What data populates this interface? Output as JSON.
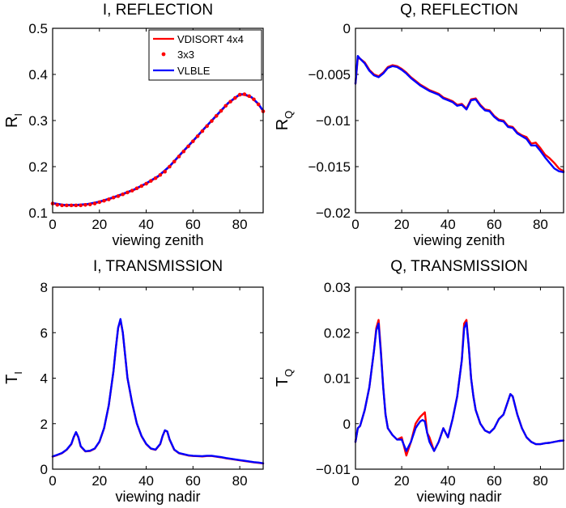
{
  "chart_data": [
    {
      "type": "line",
      "title": "I, REFLECTION",
      "xlabel": "viewing zenith",
      "ylabel_main": "R",
      "ylabel_sub": "I",
      "xlim": [
        0,
        90
      ],
      "ylim": [
        0.1,
        0.5
      ],
      "xticks": [
        "0",
        "20",
        "40",
        "60",
        "80"
      ],
      "yticks": [
        "0.1",
        "0.2",
        "0.3",
        "0.4",
        "0.5"
      ],
      "legend": {
        "position": "top-right",
        "entries": [
          "VDISORT 4x4",
          "3x3",
          "VLBLE"
        ]
      },
      "series": [
        {
          "name": "VDISORT 4x4",
          "style": "line",
          "color": "#ff0000",
          "x": [
            0,
            5,
            10,
            15,
            20,
            25,
            30,
            35,
            40,
            45,
            50,
            55,
            60,
            65,
            70,
            75,
            80,
            82,
            85,
            88,
            90
          ],
          "y": [
            0.12,
            0.116,
            0.116,
            0.118,
            0.123,
            0.131,
            0.14,
            0.15,
            0.163,
            0.178,
            0.2,
            0.228,
            0.255,
            0.283,
            0.31,
            0.337,
            0.356,
            0.356,
            0.35,
            0.335,
            0.32
          ]
        },
        {
          "name": "3x3",
          "style": "dots",
          "color": "#ff0000",
          "x": [
            0,
            2,
            4,
            6,
            8,
            10,
            12,
            14,
            16,
            18,
            20,
            22,
            24,
            26,
            28,
            30,
            32,
            34,
            36,
            38,
            40,
            42,
            44,
            46,
            48,
            50,
            52,
            54,
            56,
            58,
            60,
            62,
            64,
            66,
            68,
            70,
            72,
            74,
            76,
            78,
            80,
            82,
            84,
            86,
            88,
            90
          ],
          "y": [
            0.12,
            0.117,
            0.116,
            0.116,
            0.116,
            0.116,
            0.116,
            0.117,
            0.118,
            0.12,
            0.123,
            0.126,
            0.129,
            0.133,
            0.136,
            0.14,
            0.144,
            0.148,
            0.153,
            0.158,
            0.163,
            0.169,
            0.175,
            0.182,
            0.189,
            0.2,
            0.211,
            0.222,
            0.233,
            0.244,
            0.255,
            0.266,
            0.277,
            0.288,
            0.299,
            0.31,
            0.321,
            0.332,
            0.341,
            0.349,
            0.356,
            0.357,
            0.353,
            0.346,
            0.335,
            0.32
          ]
        },
        {
          "name": "VLBLE",
          "style": "line",
          "color": "#0000ff",
          "x": [
            0,
            5,
            10,
            15,
            20,
            25,
            30,
            35,
            40,
            45,
            50,
            55,
            60,
            65,
            70,
            75,
            80,
            82,
            85,
            88,
            90
          ],
          "y": [
            0.121,
            0.117,
            0.117,
            0.119,
            0.124,
            0.132,
            0.141,
            0.151,
            0.164,
            0.179,
            0.201,
            0.229,
            0.256,
            0.284,
            0.311,
            0.338,
            0.357,
            0.357,
            0.351,
            0.336,
            0.321
          ]
        }
      ]
    },
    {
      "type": "line",
      "title": "Q, REFLECTION",
      "xlabel": "viewing zenith",
      "ylabel_main": "R",
      "ylabel_sub": "Q",
      "xlim": [
        0,
        90
      ],
      "ylim": [
        -0.02,
        0
      ],
      "xticks": [
        "0",
        "20",
        "40",
        "60",
        "80"
      ],
      "yticks": [
        "−0.02",
        "−0.015",
        "−0.01",
        "−0.005",
        "0"
      ],
      "series": [
        {
          "name": "VDISORT 4x4",
          "style": "line",
          "color": "#ff0000",
          "x": [
            0,
            1,
            2,
            4,
            6,
            8,
            10,
            12,
            14,
            16,
            18,
            20,
            22,
            24,
            26,
            28,
            30,
            32,
            34,
            36,
            38,
            40,
            42,
            44,
            46,
            48,
            50,
            52,
            54,
            56,
            58,
            60,
            62,
            64,
            66,
            68,
            70,
            72,
            74,
            76,
            78,
            80,
            82,
            84,
            86,
            88,
            90
          ],
          "y": [
            -0.006,
            -0.0032,
            -0.0033,
            -0.0037,
            -0.0045,
            -0.005,
            -0.0052,
            -0.0048,
            -0.0042,
            -0.004,
            -0.0041,
            -0.0044,
            -0.0048,
            -0.0053,
            -0.0057,
            -0.0061,
            -0.0064,
            -0.0067,
            -0.0069,
            -0.0071,
            -0.0075,
            -0.0077,
            -0.0079,
            -0.0083,
            -0.0082,
            -0.0087,
            -0.0077,
            -0.0076,
            -0.0083,
            -0.0088,
            -0.0089,
            -0.0095,
            -0.0099,
            -0.01,
            -0.0106,
            -0.0107,
            -0.0113,
            -0.0116,
            -0.0118,
            -0.0125,
            -0.0124,
            -0.013,
            -0.0137,
            -0.0141,
            -0.0146,
            -0.0152,
            -0.0155
          ]
        },
        {
          "name": "VLBLE",
          "style": "line",
          "color": "#0000ff",
          "x": [
            0,
            1,
            2,
            4,
            6,
            8,
            10,
            12,
            14,
            16,
            18,
            20,
            22,
            24,
            26,
            28,
            30,
            32,
            34,
            36,
            38,
            40,
            42,
            44,
            46,
            48,
            50,
            52,
            54,
            56,
            58,
            60,
            62,
            64,
            66,
            68,
            70,
            72,
            74,
            76,
            78,
            80,
            82,
            84,
            86,
            88,
            90
          ],
          "y": [
            -0.006,
            -0.003,
            -0.0033,
            -0.0038,
            -0.0046,
            -0.0051,
            -0.0053,
            -0.0049,
            -0.0043,
            -0.0041,
            -0.0042,
            -0.0045,
            -0.0049,
            -0.0054,
            -0.0058,
            -0.0062,
            -0.0065,
            -0.0068,
            -0.007,
            -0.0072,
            -0.0076,
            -0.0078,
            -0.008,
            -0.0084,
            -0.0083,
            -0.0088,
            -0.0078,
            -0.0077,
            -0.0084,
            -0.0089,
            -0.009,
            -0.0096,
            -0.01,
            -0.0101,
            -0.0107,
            -0.0108,
            -0.0114,
            -0.0117,
            -0.012,
            -0.0127,
            -0.0127,
            -0.0133,
            -0.014,
            -0.0146,
            -0.0152,
            -0.0155,
            -0.0156
          ]
        }
      ]
    },
    {
      "type": "line",
      "title": "I, TRANSMISSION",
      "xlabel": "viewing nadir",
      "ylabel_main": "T",
      "ylabel_sub": "I",
      "xlim": [
        0,
        90
      ],
      "ylim": [
        0,
        8
      ],
      "xticks": [
        "0",
        "20",
        "40",
        "60",
        "80"
      ],
      "yticks": [
        "0",
        "2",
        "4",
        "6",
        "8"
      ],
      "series": [
        {
          "name": "VDISORT 4x4",
          "style": "line",
          "color": "#ff0000",
          "x": [
            0,
            2,
            4,
            6,
            8,
            9,
            10,
            11,
            12,
            14,
            16,
            18,
            20,
            22,
            24,
            26,
            27,
            28,
            29,
            30,
            31,
            32,
            34,
            36,
            38,
            40,
            42,
            44,
            46,
            47,
            48,
            49,
            50,
            52,
            54,
            56,
            58,
            60,
            62,
            64,
            66,
            68,
            70,
            72,
            74,
            76,
            78,
            80,
            82,
            84,
            86,
            88,
            90
          ],
          "y": [
            0.55,
            0.62,
            0.7,
            0.85,
            1.1,
            1.4,
            1.62,
            1.4,
            1.0,
            0.78,
            0.8,
            0.9,
            1.2,
            1.8,
            2.8,
            4.3,
            5.3,
            6.2,
            6.55,
            6.0,
            5.0,
            4.0,
            2.9,
            2.0,
            1.45,
            1.1,
            0.9,
            0.85,
            1.1,
            1.45,
            1.7,
            1.65,
            1.3,
            0.85,
            0.7,
            0.65,
            0.6,
            0.58,
            0.57,
            0.56,
            0.58,
            0.58,
            0.55,
            0.52,
            0.48,
            0.45,
            0.42,
            0.39,
            0.36,
            0.33,
            0.3,
            0.28,
            0.25
          ]
        },
        {
          "name": "VLBLE",
          "style": "line",
          "color": "#0000ff",
          "x": [
            0,
            2,
            4,
            6,
            8,
            9,
            10,
            11,
            12,
            14,
            16,
            18,
            20,
            22,
            24,
            26,
            27,
            28,
            29,
            30,
            31,
            32,
            34,
            36,
            38,
            40,
            42,
            44,
            46,
            47,
            48,
            49,
            50,
            52,
            54,
            56,
            58,
            60,
            62,
            64,
            66,
            68,
            70,
            72,
            74,
            76,
            78,
            80,
            82,
            84,
            86,
            88,
            90
          ],
          "y": [
            0.56,
            0.63,
            0.71,
            0.86,
            1.11,
            1.41,
            1.63,
            1.41,
            1.01,
            0.79,
            0.81,
            0.91,
            1.21,
            1.81,
            2.81,
            4.31,
            5.31,
            6.21,
            6.6,
            6.01,
            5.01,
            4.01,
            2.91,
            2.01,
            1.46,
            1.11,
            0.91,
            0.86,
            1.11,
            1.46,
            1.71,
            1.66,
            1.31,
            0.86,
            0.71,
            0.66,
            0.61,
            0.59,
            0.58,
            0.57,
            0.59,
            0.59,
            0.56,
            0.53,
            0.49,
            0.46,
            0.43,
            0.4,
            0.37,
            0.34,
            0.31,
            0.29,
            0.26
          ]
        }
      ]
    },
    {
      "type": "line",
      "title": "Q, TRANSMISSION",
      "xlabel": "viewing nadir",
      "ylabel_main": "T",
      "ylabel_sub": "Q",
      "xlim": [
        0,
        90
      ],
      "ylim": [
        -0.01,
        0.03
      ],
      "xticks": [
        "0",
        "20",
        "40",
        "60",
        "80"
      ],
      "yticks": [
        "−0.01",
        "0",
        "0.01",
        "0.02",
        "0.03"
      ],
      "series": [
        {
          "name": "VDISORT 4x4",
          "style": "line",
          "color": "#ff0000",
          "x": [
            0,
            1,
            2,
            4,
            6,
            8,
            9,
            10,
            11,
            12,
            13,
            14,
            16,
            18,
            20,
            22,
            24,
            26,
            27,
            28,
            29,
            30,
            31,
            32,
            34,
            36,
            38,
            40,
            42,
            44,
            46,
            47,
            48,
            49,
            50,
            51,
            52,
            54,
            56,
            58,
            60,
            62,
            64,
            66,
            67,
            68,
            70,
            72,
            74,
            76,
            78,
            80,
            82,
            84,
            86,
            88,
            90
          ],
          "y": [
            -0.004,
            -0.001,
            -0.0005,
            0.003,
            0.008,
            0.016,
            0.021,
            0.0228,
            0.016,
            0.008,
            0.002,
            -0.001,
            -0.0025,
            -0.0035,
            -0.003,
            -0.007,
            -0.004,
            0.0,
            0.0008,
            0.0015,
            0.002,
            0.0025,
            -0.002,
            -0.003,
            -0.006,
            -0.004,
            -0.001,
            -0.003,
            0.001,
            0.006,
            0.014,
            0.022,
            0.0228,
            0.017,
            0.01,
            0.006,
            0.003,
            0.0,
            -0.0015,
            -0.002,
            -0.001,
            0.001,
            0.002,
            0.005,
            0.0065,
            0.006,
            0.002,
            -0.001,
            -0.003,
            -0.004,
            -0.0045,
            -0.0045,
            -0.0043,
            -0.0042,
            -0.004,
            -0.0038,
            -0.0037
          ]
        },
        {
          "name": "VLBLE",
          "style": "line",
          "color": "#0000ff",
          "x": [
            0,
            1,
            2,
            4,
            6,
            8,
            9,
            10,
            11,
            12,
            13,
            14,
            16,
            18,
            20,
            22,
            24,
            26,
            27,
            28,
            29,
            30,
            31,
            32,
            34,
            36,
            38,
            40,
            42,
            44,
            46,
            47,
            48,
            49,
            50,
            51,
            52,
            54,
            56,
            58,
            60,
            62,
            64,
            66,
            67,
            68,
            70,
            72,
            74,
            76,
            78,
            80,
            82,
            84,
            86,
            88,
            90
          ],
          "y": [
            -0.004,
            -0.001,
            -0.0005,
            0.003,
            0.008,
            0.016,
            0.0205,
            0.022,
            0.0155,
            0.008,
            0.002,
            -0.001,
            -0.0025,
            -0.0035,
            -0.0035,
            -0.006,
            -0.004,
            -0.001,
            -0.0002,
            0.0005,
            0.0008,
            0.0005,
            -0.002,
            -0.004,
            -0.006,
            -0.004,
            -0.001,
            -0.003,
            0.001,
            0.006,
            0.014,
            0.021,
            0.0222,
            0.017,
            0.01,
            0.006,
            0.003,
            0.0,
            -0.0015,
            -0.002,
            -0.001,
            0.001,
            0.002,
            0.005,
            0.0065,
            0.006,
            0.002,
            -0.001,
            -0.003,
            -0.004,
            -0.0045,
            -0.0045,
            -0.0043,
            -0.0042,
            -0.004,
            -0.0038,
            -0.0037
          ]
        }
      ]
    }
  ]
}
